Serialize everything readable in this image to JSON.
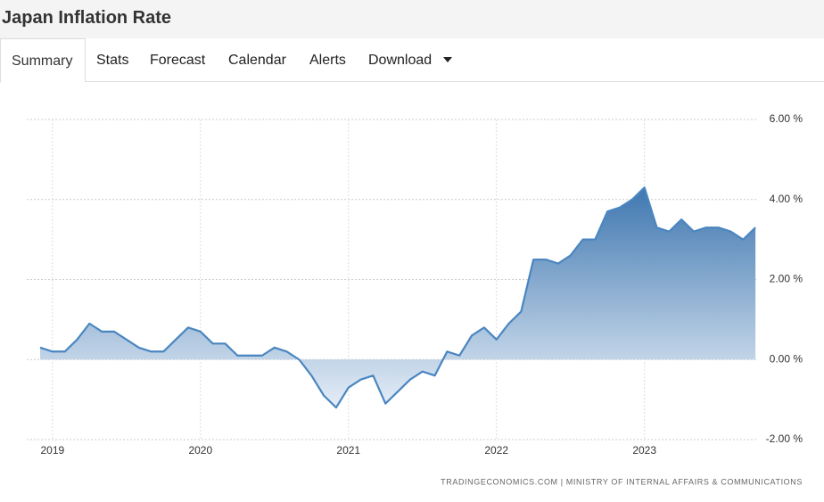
{
  "header": {
    "title": "Japan Inflation Rate"
  },
  "tabs": [
    "Summary",
    "Stats",
    "Forecast",
    "Calendar",
    "Alerts",
    "Download"
  ],
  "chart_data": {
    "type": "area",
    "categories": [
      null,
      "2019",
      null,
      null,
      null,
      null,
      null,
      null,
      null,
      null,
      null,
      null,
      null,
      "2020",
      null,
      null,
      null,
      null,
      null,
      null,
      null,
      null,
      null,
      null,
      null,
      "2021",
      null,
      null,
      null,
      null,
      null,
      null,
      null,
      null,
      null,
      null,
      null,
      "2022",
      null,
      null,
      null,
      null,
      null,
      null,
      null,
      null,
      null,
      null,
      null,
      "2023",
      null,
      null,
      null,
      null,
      null,
      null,
      null,
      null,
      null
    ],
    "values": [
      0.3,
      0.2,
      0.2,
      0.5,
      0.9,
      0.7,
      0.7,
      0.5,
      0.3,
      0.2,
      0.2,
      0.5,
      0.8,
      0.7,
      0.4,
      0.4,
      0.1,
      0.1,
      0.1,
      0.3,
      0.2,
      0.0,
      -0.4,
      -0.9,
      -1.2,
      -0.7,
      -0.5,
      -0.4,
      -1.1,
      -0.8,
      -0.5,
      -0.3,
      -0.4,
      0.2,
      0.1,
      0.6,
      0.8,
      0.5,
      0.9,
      1.2,
      2.5,
      2.5,
      2.4,
      2.6,
      3.0,
      3.0,
      3.7,
      3.8,
      4.0,
      4.3,
      3.3,
      3.2,
      3.5,
      3.2,
      3.3,
      3.3,
      3.2,
      3.0,
      3.3
    ],
    "color": "#4a86c0",
    "ylim": [
      -2,
      6
    ],
    "yticks": [
      {
        "value": -2,
        "label": "-2.00 %"
      },
      {
        "value": 0,
        "label": "0.00 %"
      },
      {
        "value": 2,
        "label": "2.00 %"
      },
      {
        "value": 4,
        "label": "4.00 %"
      },
      {
        "value": 6,
        "label": "6.00 %"
      }
    ],
    "grid": true,
    "source": "TRADINGECONOMICS.COM | MINISTRY OF INTERNAL AFFAIRS & COMMUNICATIONS"
  }
}
